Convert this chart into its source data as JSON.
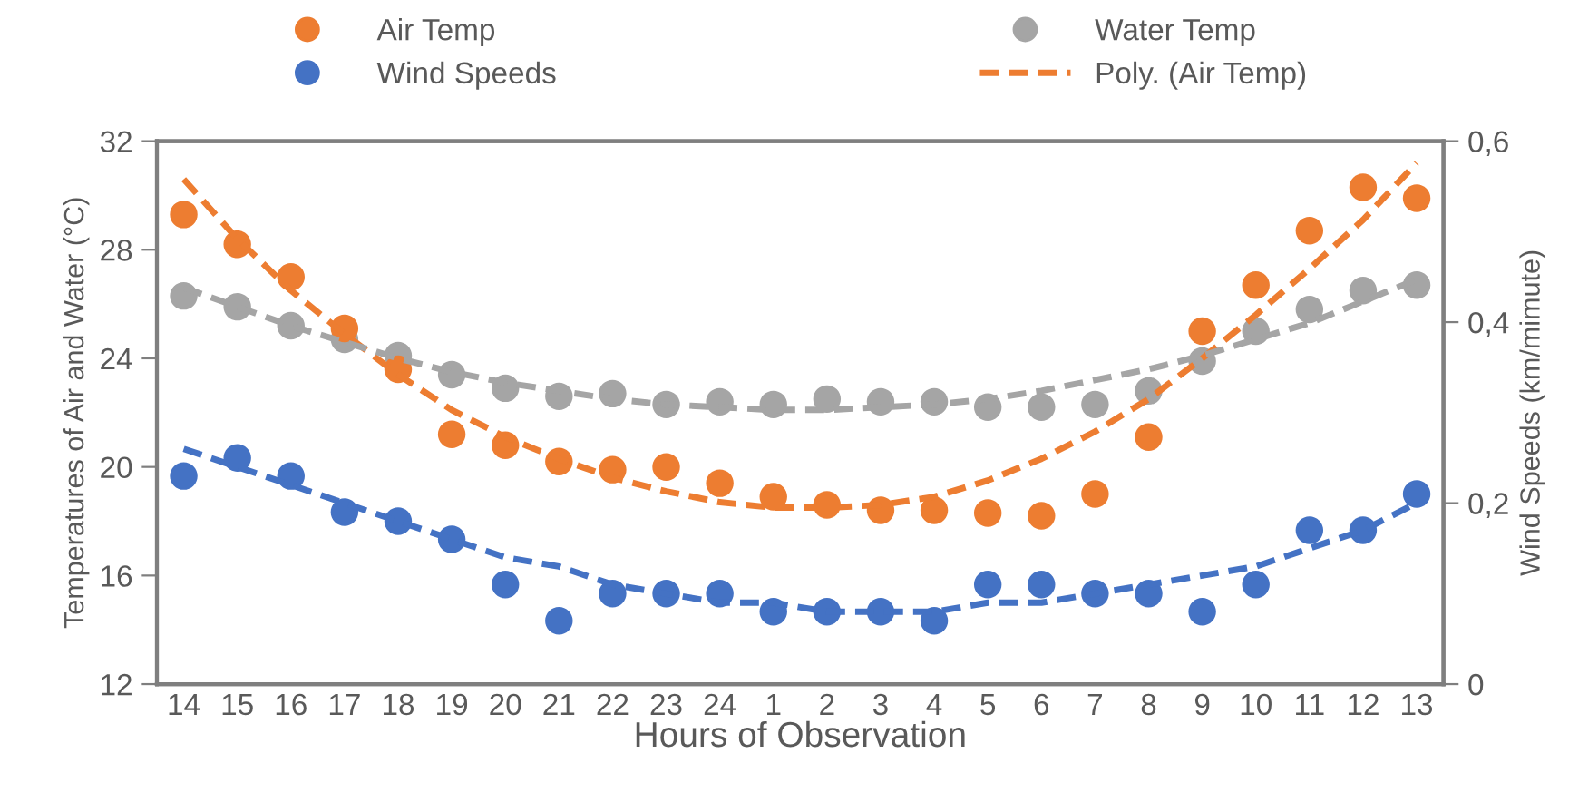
{
  "chart_data": {
    "type": "scatter",
    "xlabel": "Hours of Observation",
    "ylabel": "Temperatures of Air and Water (°C)",
    "y2label": "Wind Speeds (km/mimute)",
    "categories": [
      "14",
      "15",
      "16",
      "17",
      "18",
      "19",
      "20",
      "21",
      "22",
      "23",
      "24",
      "1",
      "2",
      "3",
      "4",
      "5",
      "6",
      "7",
      "8",
      "9",
      "10",
      "11",
      "12",
      "13"
    ],
    "ylim": [
      12,
      32
    ],
    "yticks": [
      12,
      16,
      20,
      24,
      28,
      32
    ],
    "y2lim": [
      0,
      0.6
    ],
    "y2ticks": [
      0,
      {
        "value": 0.2,
        "label": "0,2"
      },
      {
        "value": 0.4,
        "label": "0,4"
      },
      {
        "value": 0.6,
        "label": "0,6"
      }
    ],
    "grid": false,
    "legend": "top",
    "series": [
      {
        "name": "Air Temp",
        "marker": "circle",
        "color": "#ed7d31",
        "values": [
          29.3,
          28.2,
          27.0,
          25.1,
          23.6,
          21.2,
          20.8,
          20.2,
          19.9,
          20.0,
          19.4,
          18.9,
          18.6,
          18.4,
          18.4,
          18.3,
          18.2,
          19.0,
          21.1,
          25.0,
          26.7,
          28.7,
          30.3,
          29.9
        ]
      },
      {
        "name": "Water Temp",
        "marker": "circle",
        "color": "#a5a5a5",
        "values": [
          26.3,
          25.9,
          25.2,
          24.7,
          24.1,
          23.4,
          22.9,
          22.6,
          22.7,
          22.3,
          22.4,
          22.3,
          22.5,
          22.4,
          22.4,
          22.2,
          22.2,
          22.3,
          22.8,
          23.9,
          25.0,
          25.8,
          26.5,
          26.7
        ]
      },
      {
        "name": "Wind Speeds",
        "marker": "circle",
        "axis": "y2",
        "color": "#4472c4",
        "values": [
          0.23,
          0.25,
          0.23,
          0.19,
          0.18,
          0.16,
          0.11,
          0.07,
          0.1,
          0.1,
          0.1,
          0.08,
          0.08,
          0.08,
          0.07,
          0.11,
          0.11,
          0.1,
          0.1,
          0.08,
          0.11,
          0.17,
          0.17,
          0.21
        ]
      },
      {
        "name": "Poly. (Air Temp)",
        "type": "line",
        "line_style": "dashed",
        "marker": "none",
        "color": "#ed7d31",
        "values": [
          30.6,
          28.4,
          26.5,
          24.9,
          23.4,
          22.1,
          21.1,
          20.3,
          19.6,
          19.1,
          18.7,
          18.5,
          18.5,
          18.6,
          18.9,
          19.5,
          20.3,
          21.3,
          22.5,
          24.0,
          25.6,
          27.3,
          29.1,
          31.2
        ]
      },
      {
        "type": "line",
        "line_style": "dashed",
        "marker": "none",
        "color": "#a5a5a5",
        "values": [
          26.6,
          25.9,
          25.2,
          24.6,
          24.0,
          23.5,
          23.1,
          22.8,
          22.5,
          22.3,
          22.2,
          22.1,
          22.1,
          22.2,
          22.3,
          22.5,
          22.8,
          23.2,
          23.6,
          24.1,
          24.7,
          25.3,
          26.1,
          26.9
        ]
      },
      {
        "type": "line",
        "line_style": "dashed",
        "marker": "none",
        "axis": "y2",
        "color": "#4472c4",
        "values": [
          0.26,
          0.24,
          0.22,
          0.2,
          0.18,
          0.16,
          0.14,
          0.13,
          0.11,
          0.1,
          0.09,
          0.09,
          0.08,
          0.08,
          0.08,
          0.09,
          0.09,
          0.1,
          0.11,
          0.12,
          0.13,
          0.15,
          0.17,
          0.2
        ]
      }
    ]
  }
}
